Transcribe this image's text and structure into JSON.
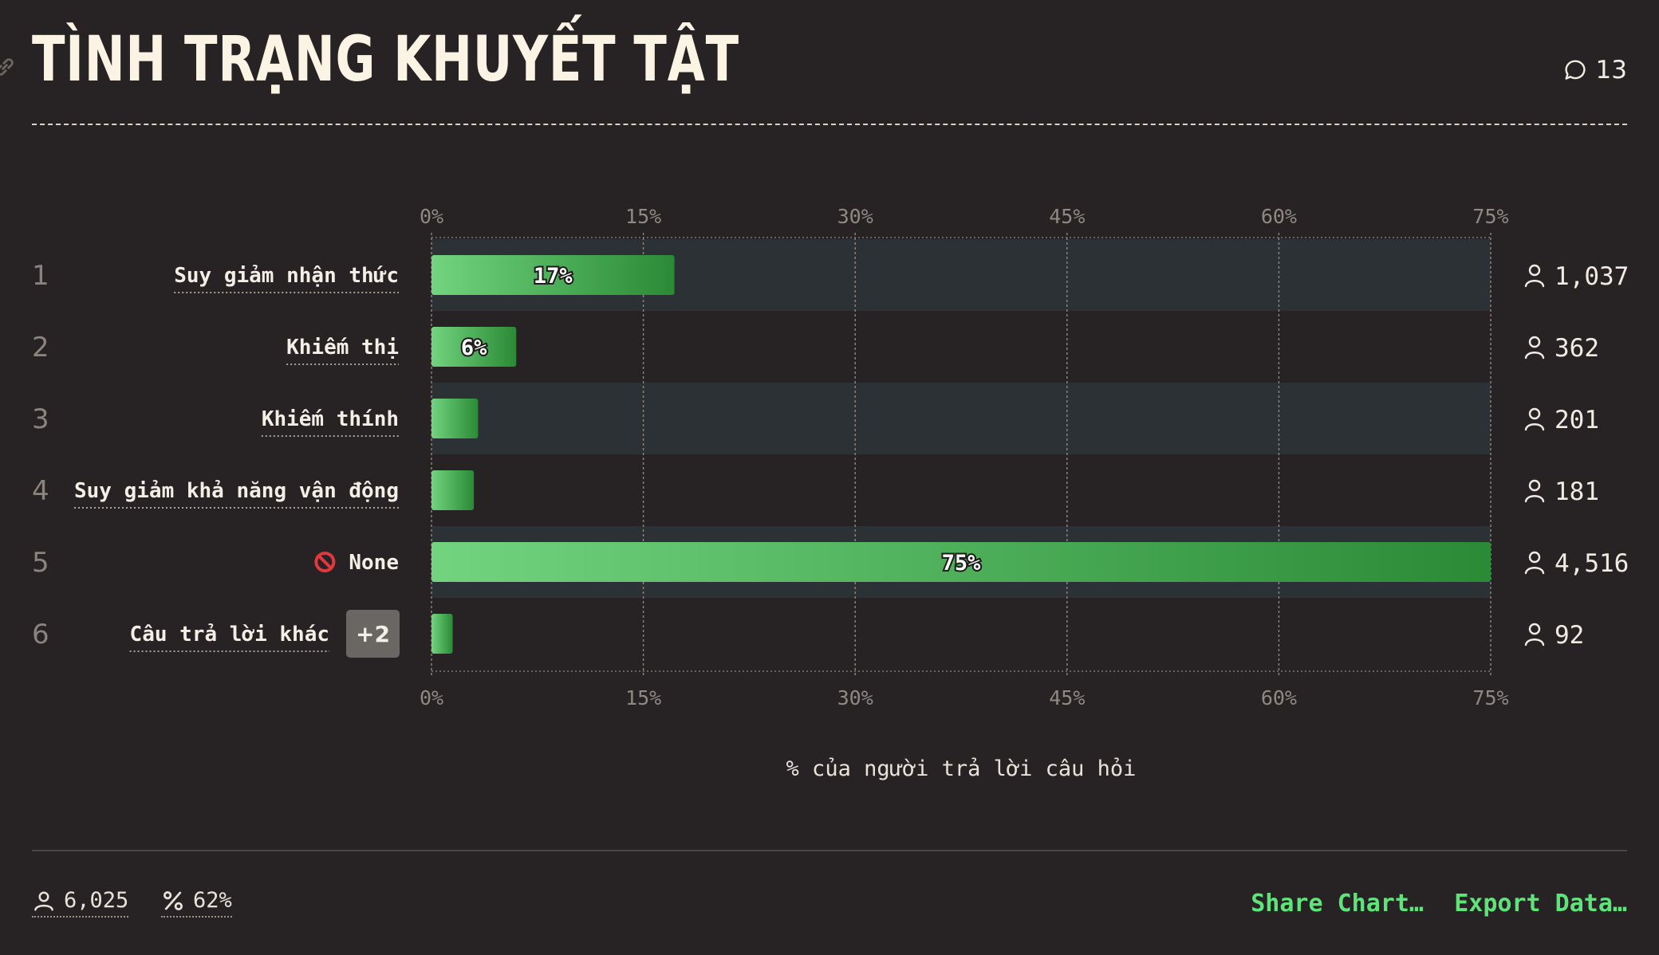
{
  "title": "TÌNH TRẠNG KHUYẾT TẬT",
  "comments_count": "13",
  "chart_data": {
    "type": "bar",
    "orientation": "horizontal",
    "xlim": [
      0,
      75
    ],
    "ticks": [
      "0%",
      "15%",
      "30%",
      "45%",
      "60%",
      "75%"
    ],
    "tick_values": [
      0,
      15,
      30,
      45,
      60,
      75
    ],
    "xlabel": "% của người trả lời câu hỏi",
    "grid": true,
    "rows": [
      {
        "rank": "1",
        "label": "Suy giảm nhận thức",
        "value": 17.2,
        "value_label": "17%",
        "count": "1,037"
      },
      {
        "rank": "2",
        "label": "Khiếm thị",
        "value": 6.0,
        "value_label": "6%",
        "count": "362"
      },
      {
        "rank": "3",
        "label": "Khiếm thính",
        "value": 3.3,
        "value_label": "",
        "count": "201"
      },
      {
        "rank": "4",
        "label": "Suy giảm khả năng vận động",
        "value": 3.0,
        "value_label": "",
        "count": "181"
      },
      {
        "rank": "5",
        "label": "None",
        "icon": "no-entry-icon",
        "value": 75,
        "value_label": "75%",
        "count": "4,516"
      },
      {
        "rank": "6",
        "label": "Câu trả lời khác",
        "badge": "+2",
        "value": 1.5,
        "value_label": "",
        "count": "92"
      }
    ],
    "colors": {
      "bar_start": "#72d47e",
      "bar_end": "#2a8a35",
      "row_stripe": "#2b3135"
    }
  },
  "footer": {
    "respondents": "6,025",
    "response_rate": "62%",
    "share_label": "Share Chart…",
    "export_label": "Export Data…"
  }
}
